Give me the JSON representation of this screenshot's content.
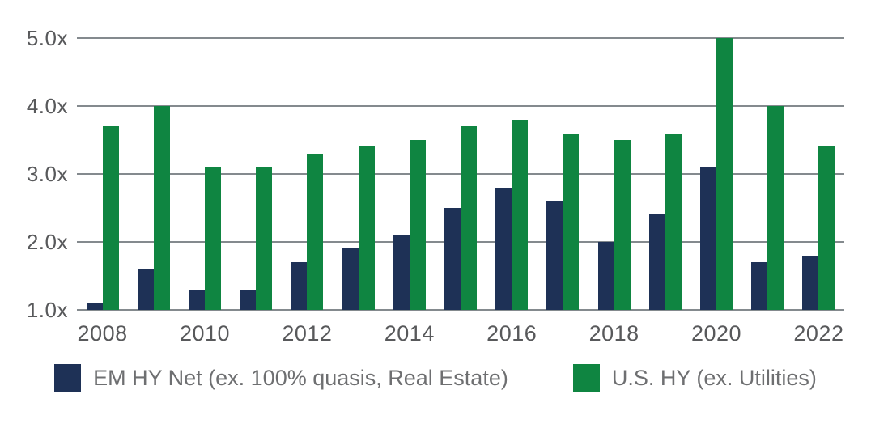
{
  "chart_data": {
    "type": "bar",
    "title": "",
    "unit_suffix": "x",
    "categories": [
      "2008",
      "2009",
      "2010",
      "2011",
      "2012",
      "2013",
      "2014",
      "2015",
      "2016",
      "2017",
      "2018",
      "2019",
      "2020",
      "2021",
      "2022"
    ],
    "series": [
      {
        "name": "EM HY Net (ex. 100% quasis, Real Estate)",
        "key": "em-hy-net",
        "color": "#1e3156",
        "values": [
          1.1,
          1.6,
          1.3,
          1.3,
          1.7,
          1.9,
          2.1,
          2.5,
          2.8,
          2.6,
          2.0,
          2.4,
          3.1,
          1.7,
          1.8
        ]
      },
      {
        "name": "U.S. HY (ex. Utilities)",
        "key": "us-hy",
        "color": "#0f8541",
        "values": [
          3.7,
          4.0,
          3.1,
          3.1,
          3.3,
          3.4,
          3.5,
          3.7,
          3.8,
          3.6,
          3.5,
          3.6,
          5.0,
          4.0,
          3.4
        ]
      }
    ],
    "y_ticks": [
      "5.0x",
      "4.0x",
      "3.0x",
      "2.0x",
      "1.0x"
    ],
    "x_tick_labels": [
      "2008",
      "2010",
      "2012",
      "2014",
      "2016",
      "2018",
      "2020",
      "2022"
    ],
    "ylim": [
      1.0,
      5.0
    ],
    "grid": "horizontal",
    "gridline_color": "#848a8e",
    "axis_text_color": "#58595b",
    "legend_text_color": "#6e6f71",
    "legend_position": "bottom"
  }
}
